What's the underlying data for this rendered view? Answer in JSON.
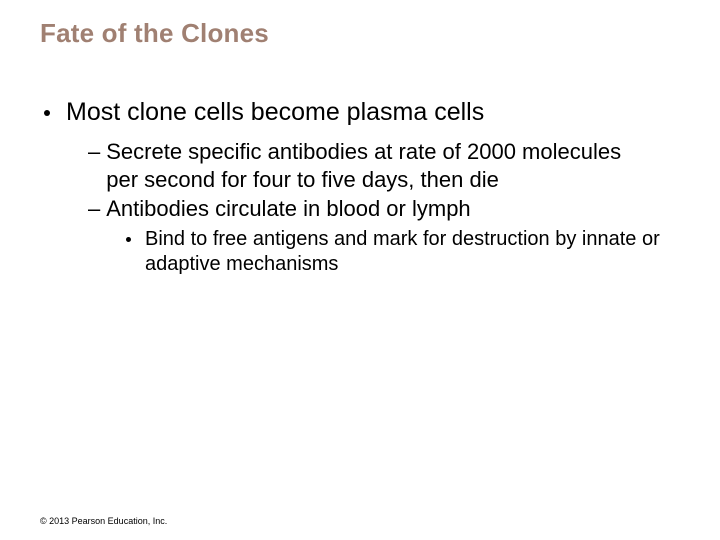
{
  "title": "Fate of the Clones",
  "bullets": {
    "level1": {
      "text": "Most clone cells become plasma cells"
    },
    "level2a": {
      "text": "Secrete specific antibodies at rate of 2000 molecules per second for four to five days, then die"
    },
    "level2b": {
      "text": "Antibodies circulate in blood or lymph"
    },
    "level3": {
      "text": "Bind to free antigens and mark for destruction by innate or adaptive mechanisms"
    }
  },
  "copyright": "© 2013 Pearson Education, Inc.",
  "colors": {
    "title": "#a08072",
    "text": "#000000",
    "background": "#ffffff"
  },
  "typography": {
    "title_fontsize": 26,
    "l1_fontsize": 25,
    "l2_fontsize": 22,
    "l3_fontsize": 20,
    "copyright_fontsize": 9,
    "font_family": "Arial"
  }
}
